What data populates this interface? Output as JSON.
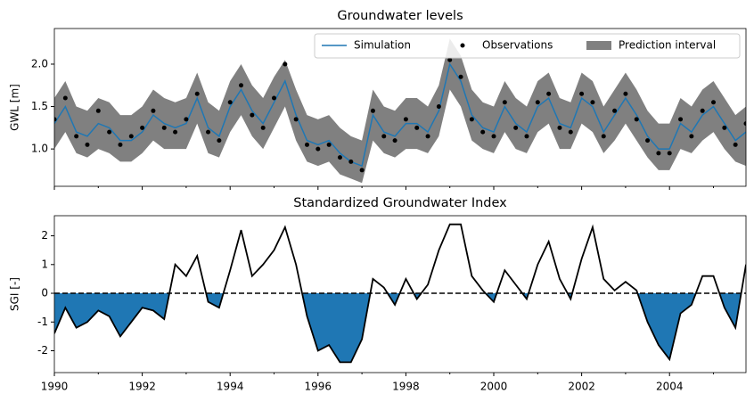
{
  "chart_data": [
    {
      "type": "line",
      "title": "Groundwater levels",
      "ylabel": "GWL [m]",
      "x": [
        1990,
        1990.25,
        1990.5,
        1990.75,
        1991,
        1991.25,
        1991.5,
        1991.75,
        1992,
        1992.25,
        1992.5,
        1992.75,
        1993,
        1993.25,
        1993.5,
        1993.75,
        1994,
        1994.25,
        1994.5,
        1994.75,
        1995,
        1995.25,
        1995.5,
        1995.75,
        1996,
        1996.25,
        1996.5,
        1996.75,
        1997,
        1997.25,
        1997.5,
        1997.75,
        1998,
        1998.25,
        1998.5,
        1998.75,
        1999,
        1999.25,
        1999.5,
        1999.75,
        2000,
        2000.25,
        2000.5,
        2000.75,
        2001,
        2001.25,
        2001.5,
        2001.75,
        2002,
        2002.25,
        2002.5,
        2002.75,
        2003,
        2003.25,
        2003.5,
        2003.75,
        2004,
        2004.25,
        2004.5,
        2004.75,
        2005,
        2005.25,
        2005.5,
        2005.74
      ],
      "series": [
        {
          "name": "Prediction interval",
          "color": "#808080",
          "lower": [
            1.0,
            1.2,
            0.95,
            0.9,
            1.0,
            0.95,
            0.85,
            0.85,
            0.95,
            1.1,
            1.0,
            1.0,
            1.0,
            1.3,
            0.95,
            0.9,
            1.2,
            1.4,
            1.15,
            1.0,
            1.25,
            1.5,
            1.1,
            0.85,
            0.8,
            0.85,
            0.7,
            0.65,
            0.6,
            1.1,
            0.95,
            0.9,
            1.0,
            1.0,
            0.95,
            1.15,
            1.7,
            1.5,
            1.1,
            1.0,
            0.95,
            1.2,
            1.0,
            0.95,
            1.2,
            1.3,
            1.0,
            1.0,
            1.3,
            1.2,
            0.95,
            1.1,
            1.3,
            1.1,
            0.9,
            0.75,
            0.75,
            1.0,
            0.95,
            1.1,
            1.2,
            1.0,
            0.85,
            0.8
          ],
          "upper": [
            1.6,
            1.8,
            1.5,
            1.45,
            1.6,
            1.55,
            1.4,
            1.4,
            1.5,
            1.7,
            1.6,
            1.55,
            1.6,
            1.9,
            1.55,
            1.45,
            1.8,
            2.0,
            1.75,
            1.6,
            1.85,
            2.05,
            1.7,
            1.4,
            1.35,
            1.4,
            1.25,
            1.15,
            1.1,
            1.7,
            1.5,
            1.45,
            1.6,
            1.6,
            1.5,
            1.75,
            2.3,
            2.1,
            1.7,
            1.55,
            1.5,
            1.8,
            1.6,
            1.5,
            1.8,
            1.9,
            1.6,
            1.55,
            1.9,
            1.8,
            1.5,
            1.7,
            1.9,
            1.7,
            1.45,
            1.3,
            1.3,
            1.6,
            1.5,
            1.7,
            1.8,
            1.6,
            1.4,
            1.5
          ]
        },
        {
          "name": "Simulation",
          "color": "#1f77b4",
          "values": [
            1.3,
            1.5,
            1.2,
            1.15,
            1.3,
            1.25,
            1.1,
            1.1,
            1.2,
            1.4,
            1.3,
            1.25,
            1.3,
            1.6,
            1.25,
            1.15,
            1.5,
            1.7,
            1.45,
            1.3,
            1.55,
            1.8,
            1.4,
            1.1,
            1.05,
            1.1,
            0.95,
            0.85,
            0.8,
            1.4,
            1.2,
            1.15,
            1.3,
            1.3,
            1.2,
            1.45,
            2.0,
            1.8,
            1.4,
            1.25,
            1.2,
            1.5,
            1.3,
            1.2,
            1.5,
            1.6,
            1.3,
            1.25,
            1.6,
            1.5,
            1.2,
            1.4,
            1.6,
            1.4,
            1.15,
            1.0,
            1.0,
            1.3,
            1.2,
            1.4,
            1.5,
            1.3,
            1.1,
            1.2
          ]
        },
        {
          "name": "Observations",
          "color": "#000000",
          "style": "markers",
          "values": [
            1.35,
            1.6,
            1.15,
            1.05,
            1.45,
            1.2,
            1.05,
            1.15,
            1.25,
            1.45,
            1.25,
            1.2,
            1.35,
            1.65,
            1.2,
            1.1,
            1.55,
            1.75,
            1.4,
            1.25,
            1.6,
            2.0,
            1.35,
            1.05,
            1.0,
            1.05,
            0.9,
            0.85,
            0.75,
            1.45,
            1.15,
            1.1,
            1.35,
            1.25,
            1.15,
            1.5,
            2.05,
            1.85,
            1.35,
            1.2,
            1.15,
            1.55,
            1.25,
            1.15,
            1.55,
            1.65,
            1.25,
            1.2,
            1.65,
            1.55,
            1.15,
            1.45,
            1.65,
            1.35,
            1.1,
            0.95,
            0.95,
            1.35,
            1.15,
            1.45,
            1.55,
            1.25,
            1.05,
            1.3
          ]
        }
      ],
      "xlim": [
        1990,
        2005.74
      ],
      "xticks": [
        1990,
        1992,
        1994,
        1996,
        1998,
        2000,
        2002,
        2004
      ],
      "xticklabels": false,
      "ylim": [
        0.56,
        2.42
      ],
      "yticks": [
        {
          "value": 1,
          "label": "1.0"
        },
        {
          "value": 1.5,
          "label": "1.5"
        },
        {
          "value": 2,
          "label": "2.0"
        }
      ],
      "legend": "upper right"
    },
    {
      "type": "area",
      "title": "Standardized Groundwater Index",
      "ylabel": "SGI [-]",
      "x": [
        1990,
        1990.25,
        1990.5,
        1990.75,
        1991,
        1991.25,
        1991.5,
        1991.75,
        1992,
        1992.25,
        1992.5,
        1992.75,
        1993,
        1993.25,
        1993.5,
        1993.75,
        1994,
        1994.25,
        1994.5,
        1994.75,
        1995,
        1995.25,
        1995.5,
        1995.75,
        1996,
        1996.25,
        1996.5,
        1996.75,
        1997,
        1997.25,
        1997.5,
        1997.75,
        1998,
        1998.25,
        1998.5,
        1998.75,
        1999,
        1999.25,
        1999.5,
        1999.75,
        2000,
        2000.25,
        2000.5,
        2000.75,
        2001,
        2001.25,
        2001.5,
        2001.75,
        2002,
        2002.25,
        2002.5,
        2002.75,
        2003,
        2003.25,
        2003.5,
        2003.75,
        2004,
        2004.25,
        2004.5,
        2004.75,
        2005,
        2005.25,
        2005.5,
        2005.74
      ],
      "series": [
        {
          "color": "#000000",
          "fill_below_zero": "#1f77b4",
          "values": [
            -1.4,
            -0.5,
            -1.2,
            -1.0,
            -0.6,
            -0.8,
            -1.5,
            -1.0,
            -0.5,
            -0.6,
            -0.9,
            1.0,
            0.6,
            1.3,
            -0.3,
            -0.5,
            0.8,
            2.2,
            0.6,
            1.0,
            1.5,
            2.3,
            1.0,
            -0.8,
            -2.0,
            -1.8,
            -2.4,
            -2.4,
            -1.6,
            0.5,
            0.2,
            -0.4,
            0.5,
            -0.2,
            0.3,
            1.5,
            2.4,
            2.4,
            0.6,
            0.1,
            -0.3,
            0.8,
            0.3,
            -0.2,
            1.0,
            1.8,
            0.5,
            -0.2,
            1.2,
            2.3,
            0.5,
            0.1,
            0.4,
            0.1,
            -1.0,
            -1.8,
            -2.3,
            -0.7,
            -0.4,
            0.6,
            0.6,
            -0.5,
            -1.2,
            1.0
          ]
        }
      ],
      "xlim": [
        1990,
        2005.74
      ],
      "xticks": [
        1990,
        1992,
        1994,
        1996,
        1998,
        2000,
        2002,
        2004
      ],
      "xticklabels": true,
      "ylim": [
        -2.76,
        2.7
      ],
      "yticks": [
        -2,
        -1,
        0,
        1,
        2
      ],
      "zero_line": true
    }
  ]
}
